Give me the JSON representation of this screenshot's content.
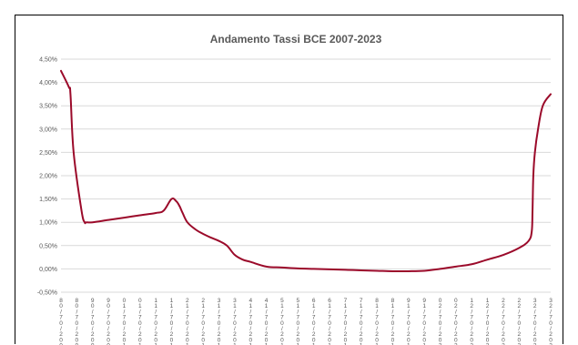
{
  "chart_data": {
    "type": "line",
    "title": "Andamento Tassi BCE 2007-2023",
    "xlabel": "",
    "ylabel": "",
    "ylim": [
      -0.5,
      4.5
    ],
    "y_ticks": [
      "4,50%",
      "4,00%",
      "3,50%",
      "3,00%",
      "2,50%",
      "2,00%",
      "1,50%",
      "1,00%",
      "0,50%",
      "0,00%",
      "-0,50%"
    ],
    "y_tick_values": [
      4.5,
      4.0,
      3.5,
      3.0,
      2.5,
      2.0,
      1.5,
      1.0,
      0.5,
      0.0,
      -0.5
    ],
    "x_ticks": [
      "8 0 / 7 0 / 2 0 0 8",
      "8 0 / 7 0 / 2 0 0 8",
      "9 0 / 7 0 / 2 0 0 9",
      "9 0 / 7 0 / 2 0 0 9",
      "0 1 / 7 0 / 2 0 1 0",
      "0 1 / 7 0 / 2 0 1 0",
      "1 1 / 7 0 / 2 0 1 1",
      "1 1 / 7 0 / 2 0 1 1",
      "2 1 / 7 0 / 2 0 1 2",
      "2 1 / 7 0 / 2 0 1 2",
      "3 1 / 7 0 / 2 0 1 3",
      "3 1 / 7 0 / 2 0 1 3",
      "4 1 / 7 0 / 2 0 1 4",
      "4 1 / 7 0 / 2 0 1 4",
      "5 1 / 7 0 / 2 0 1 5",
      "5 1 / 7 0 / 2 0 1 5",
      "6 1 / 7 0 / 2 0 1 6",
      "6 1 / 7 0 / 2 0 1 6",
      "7 1 / 7 0 / 2 0 1 7",
      "7 1 / 7 0 / 2 0 1 7",
      "8 1 / 7 0 / 2 0 1 8",
      "8 1 / 7 0 / 2 0 1 8",
      "9 1 / 7 0 / 2 0 1 9",
      "9 1 / 7 0 / 2 0 1 9",
      "0 2 / 7 0 / 2 0 2 0",
      "0 2 / 7 0 / 2 0 2 0",
      "1 2 / 7 0 / 2 0 2 1",
      "1 2 / 7 0 / 2 0 2 1",
      "2 2 / 7 0 / 2 0 2 2",
      "2 2 / 7 0 / 2 0 2 2",
      "3 2 / 7 0 / 2 0 2 3",
      "3 2 / 7 0 / 2 0 2 3"
    ],
    "series": [
      {
        "color": "#9b0a2a",
        "x": [
          0,
          0.5,
          0.6,
          0.8,
          1.3,
          1.5,
          1.6,
          2.0,
          3.0,
          4.0,
          5.0,
          6.0,
          6.5,
          7.0,
          7.3,
          7.5,
          7.7,
          8.0,
          8.5,
          9.0,
          9.5,
          10.0,
          10.5,
          11.0,
          11.5,
          12.0,
          13.0,
          14.0,
          15.0,
          16.0,
          17.0,
          18.0,
          19.0,
          20.0,
          21.0,
          22.0,
          23.0,
          24.0,
          25.0,
          26.0,
          27.0,
          28.0,
          29.0,
          29.6,
          29.8,
          29.85,
          29.9,
          30.0,
          30.2,
          30.5,
          31.0
        ],
        "values": [
          4.25,
          3.9,
          3.75,
          2.5,
          1.25,
          1.0,
          1.0,
          1.0,
          1.05,
          1.1,
          1.15,
          1.2,
          1.25,
          1.5,
          1.45,
          1.35,
          1.2,
          1.0,
          0.85,
          0.75,
          0.67,
          0.6,
          0.5,
          0.3,
          0.2,
          0.15,
          0.05,
          0.03,
          0.01,
          0.0,
          -0.01,
          -0.02,
          -0.03,
          -0.04,
          -0.05,
          -0.05,
          -0.04,
          0.0,
          0.05,
          0.1,
          0.2,
          0.3,
          0.45,
          0.6,
          0.8,
          1.25,
          2.0,
          2.5,
          3.0,
          3.5,
          3.75
        ]
      }
    ],
    "grid": true,
    "legend": "none"
  }
}
